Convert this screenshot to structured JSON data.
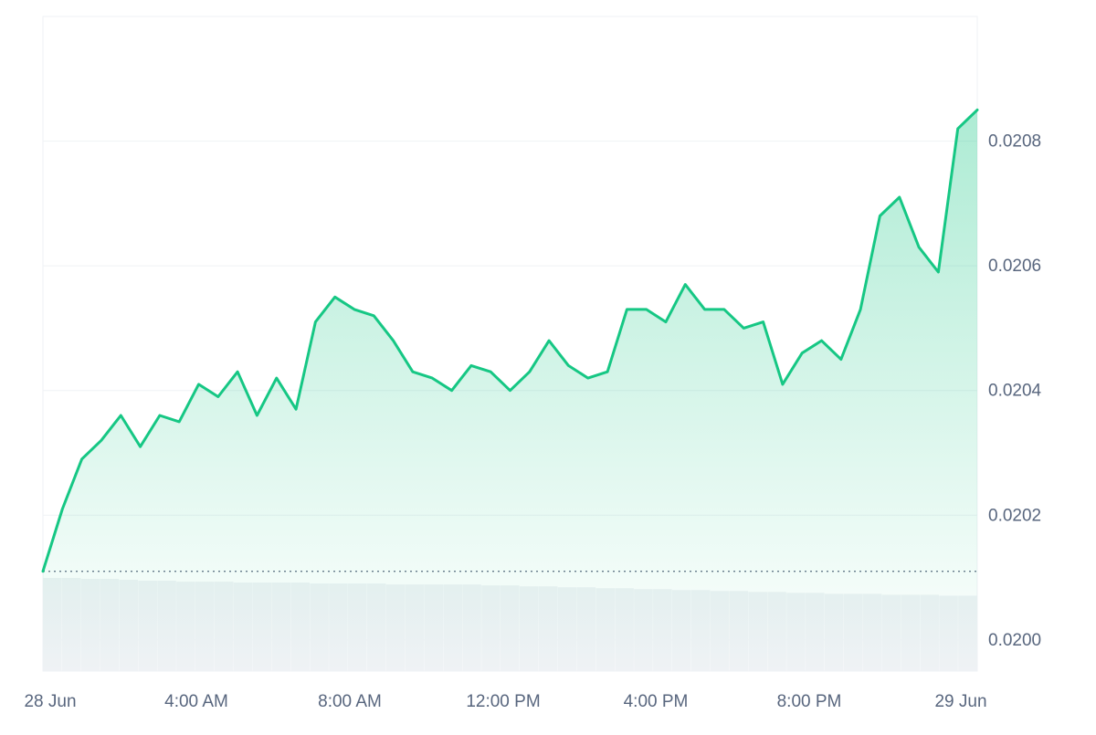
{
  "chart_data": {
    "type": "area",
    "title": "",
    "xlabel": "",
    "ylabel": "",
    "x_tick_labels": [
      "28 Jun",
      "4:00 AM",
      "8:00 AM",
      "12:00 PM",
      "4:00 PM",
      "8:00 PM",
      "29 Jun"
    ],
    "y_tick_labels": [
      "0.0200",
      "0.0202",
      "0.0204",
      "0.0206",
      "0.0208"
    ],
    "y_ticks": [
      0.02,
      0.0202,
      0.0204,
      0.0206,
      0.0208
    ],
    "ylim": [
      0.01995,
      0.021
    ],
    "xlim": [
      "2024-06-28T00:00",
      "2024-06-29T00:00"
    ],
    "baseline_value": 0.02011,
    "colors": {
      "line": "#16c784",
      "fill": "#16c784",
      "grid": "#eff2f5",
      "volume": "#eff2f5",
      "baseline": "#58667e",
      "text": "#58667e"
    },
    "series": [
      {
        "x": [
          "00:00",
          "00:30",
          "01:00",
          "01:30",
          "02:00",
          "02:30",
          "03:00",
          "03:30",
          "04:00",
          "04:30",
          "05:00",
          "05:30",
          "06:00",
          "06:30",
          "07:00",
          "07:30",
          "08:00",
          "08:30",
          "09:00",
          "09:30",
          "10:00",
          "10:30",
          "11:00",
          "11:30",
          "12:00",
          "12:30",
          "13:00",
          "13:30",
          "14:00",
          "14:30",
          "15:00",
          "15:30",
          "16:00",
          "16:30",
          "17:00",
          "17:30",
          "18:00",
          "18:30",
          "19:00",
          "19:30",
          "20:00",
          "20:30",
          "21:00",
          "21:30",
          "22:00",
          "22:30",
          "23:00",
          "23:30",
          "24:00"
        ],
        "values": [
          0.02011,
          0.02021,
          0.02029,
          0.02032,
          0.02036,
          0.02031,
          0.02036,
          0.02035,
          0.02041,
          0.02039,
          0.02043,
          0.02036,
          0.02042,
          0.02037,
          0.02051,
          0.02055,
          0.02053,
          0.02052,
          0.02048,
          0.02043,
          0.02042,
          0.0204,
          0.02044,
          0.02043,
          0.0204,
          0.02043,
          0.02048,
          0.02044,
          0.02042,
          0.02043,
          0.02053,
          0.02053,
          0.02051,
          0.02057,
          0.02053,
          0.02053,
          0.0205,
          0.02051,
          0.02041,
          0.02046,
          0.02048,
          0.02045,
          0.02053,
          0.02068,
          0.02071,
          0.02063,
          0.02059,
          0.02082,
          0.02085
        ]
      }
    ],
    "volume": [
      100,
      100,
      99,
      99,
      98,
      97,
      97,
      96,
      96,
      96,
      95,
      95,
      95,
      95,
      94,
      94,
      94,
      94,
      93,
      93,
      93,
      93,
      93,
      92,
      92,
      91,
      91,
      90,
      90,
      89,
      89,
      88,
      88,
      87,
      87,
      86,
      86,
      85,
      85,
      84,
      84,
      83,
      83,
      83,
      82,
      82,
      82,
      81,
      81
    ]
  }
}
